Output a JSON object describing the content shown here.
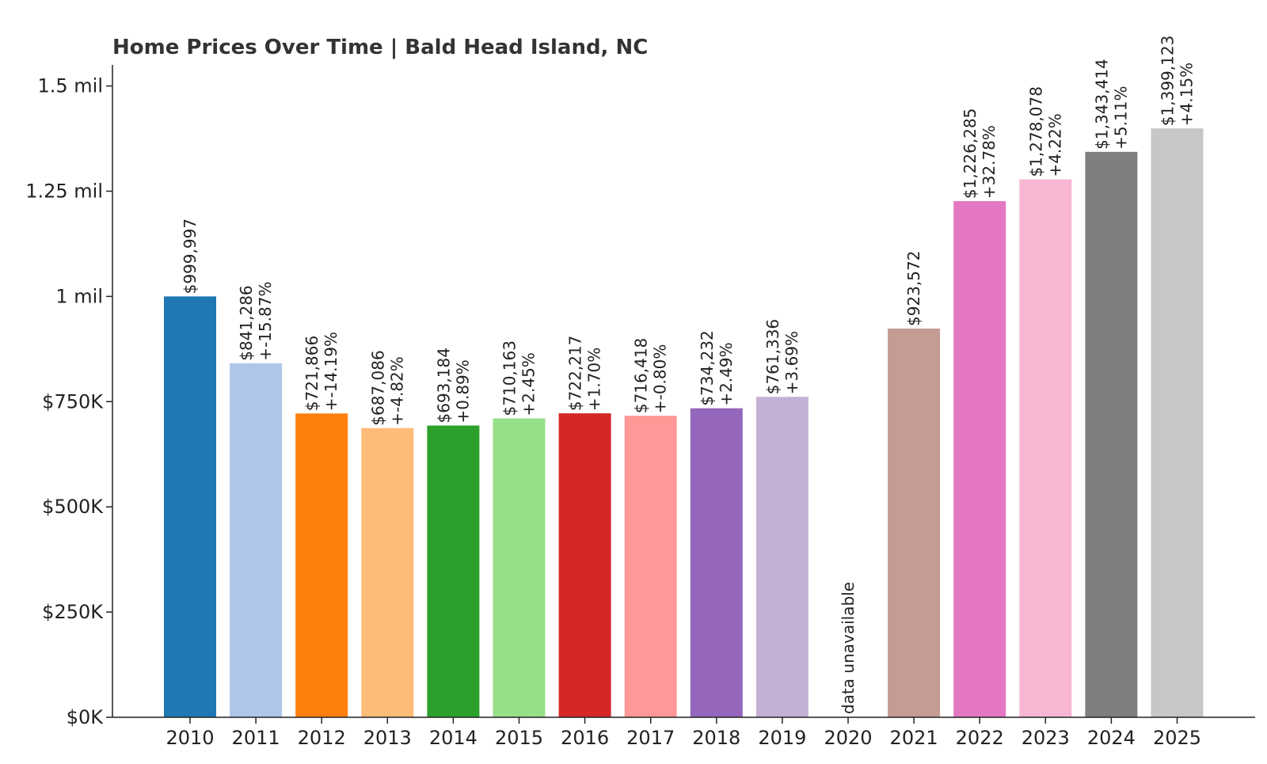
{
  "chart_data": {
    "type": "bar",
    "title": "Home Prices Over Time | Bald Head Island, NC",
    "xlabel": "",
    "ylabel": "",
    "ylim": [
      0,
      1550000
    ],
    "grid": false,
    "legend": "none",
    "yticks": [
      {
        "value": 0,
        "label": "$0K"
      },
      {
        "value": 250000,
        "label": "$250K"
      },
      {
        "value": 500000,
        "label": "$500K"
      },
      {
        "value": 750000,
        "label": "$750K"
      },
      {
        "value": 1000000,
        "label": "1 mil"
      },
      {
        "value": 1250000,
        "label": "1.25 mil"
      },
      {
        "value": 1500000,
        "label": "1.5 mil"
      }
    ],
    "categories": [
      "2010",
      "2011",
      "2012",
      "2013",
      "2014",
      "2015",
      "2016",
      "2017",
      "2018",
      "2019",
      "2020",
      "2021",
      "2022",
      "2023",
      "2024",
      "2025"
    ],
    "values": [
      999997,
      841286,
      721866,
      687086,
      693184,
      710163,
      722217,
      716418,
      734232,
      761336,
      null,
      923572,
      1226285,
      1278078,
      1343414,
      1399123
    ],
    "value_labels": [
      "$999,997",
      "$841,286",
      "$721,866",
      "$687,086",
      "$693,184",
      "$710,163",
      "$722,217",
      "$716,418",
      "$734,232",
      "$761,336",
      "",
      "$923,572",
      "$1,226,285",
      "$1,278,078",
      "$1,343,414",
      "$1,399,123"
    ],
    "change_labels": [
      "",
      "+-15.87%",
      "+-14.19%",
      "+-4.82%",
      "+0.89%",
      "+2.45%",
      "+1.70%",
      "+-0.80%",
      "+2.49%",
      "+3.69%",
      "",
      "",
      "+32.78%",
      "+4.22%",
      "+5.11%",
      "+4.15%"
    ],
    "missing_label": "data unavailable",
    "colors": [
      "#1f77b4",
      "#aec7e8",
      "#ff7f0e",
      "#ffbb78",
      "#2ca02c",
      "#98df8a",
      "#d62728",
      "#ff9896",
      "#9467bd",
      "#c5b0d5",
      "#8c564b",
      "#c49c94",
      "#e377c2",
      "#f7b6d2",
      "#7f7f7f",
      "#c7c7c7"
    ]
  }
}
